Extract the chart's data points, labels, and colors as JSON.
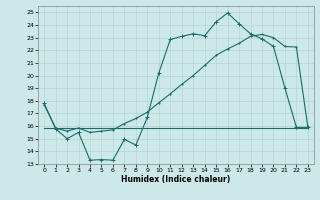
{
  "xlabel": "Humidex (Indice chaleur)",
  "bg_color": "#cce8e8",
  "grid_color": "#b8d8d8",
  "line_color": "#1a6b6b",
  "xlim": [
    -0.5,
    23.5
  ],
  "ylim": [
    13,
    25.5
  ],
  "yticks": [
    13,
    14,
    15,
    16,
    17,
    18,
    19,
    20,
    21,
    22,
    23,
    24,
    25
  ],
  "xticks": [
    0,
    1,
    2,
    3,
    4,
    5,
    6,
    7,
    8,
    9,
    10,
    11,
    12,
    13,
    14,
    15,
    16,
    17,
    18,
    19,
    20,
    21,
    22,
    23
  ],
  "line1_x": [
    0,
    1,
    2,
    3,
    4,
    5,
    6,
    7,
    8,
    9,
    10,
    11,
    12,
    13,
    14,
    15,
    16,
    17,
    18,
    19,
    20,
    21,
    22,
    23
  ],
  "line1_y": [
    17.8,
    15.8,
    15.0,
    15.5,
    13.3,
    13.35,
    13.3,
    14.95,
    14.5,
    16.7,
    20.2,
    22.85,
    23.1,
    23.3,
    23.15,
    24.25,
    24.95,
    24.1,
    23.3,
    22.9,
    22.3,
    19.0,
    15.9,
    15.9
  ],
  "line2_x": [
    0,
    1,
    2,
    3,
    4,
    5,
    6,
    7,
    8,
    9,
    10,
    11,
    12,
    13,
    14,
    15,
    16,
    17,
    18,
    19,
    20,
    21,
    22,
    23
  ],
  "line2_y": [
    17.7,
    15.85,
    15.6,
    15.85,
    15.5,
    15.6,
    15.7,
    16.2,
    16.6,
    17.1,
    17.85,
    18.55,
    19.3,
    20.0,
    20.8,
    21.6,
    22.1,
    22.55,
    23.1,
    23.25,
    23.0,
    22.3,
    22.25,
    15.9
  ],
  "line3_x": [
    0,
    1,
    2,
    3,
    4,
    5,
    6,
    7,
    8,
    9,
    10,
    11,
    12,
    13,
    14,
    15,
    16,
    17,
    18,
    19,
    20,
    21,
    22,
    23
  ],
  "line3_y": [
    15.85,
    15.85,
    15.85,
    15.85,
    15.85,
    15.85,
    15.85,
    15.85,
    15.85,
    15.85,
    15.85,
    15.85,
    15.85,
    15.85,
    15.85,
    15.85,
    15.85,
    15.85,
    15.85,
    15.85,
    15.85,
    15.85,
    15.85,
    15.85
  ]
}
